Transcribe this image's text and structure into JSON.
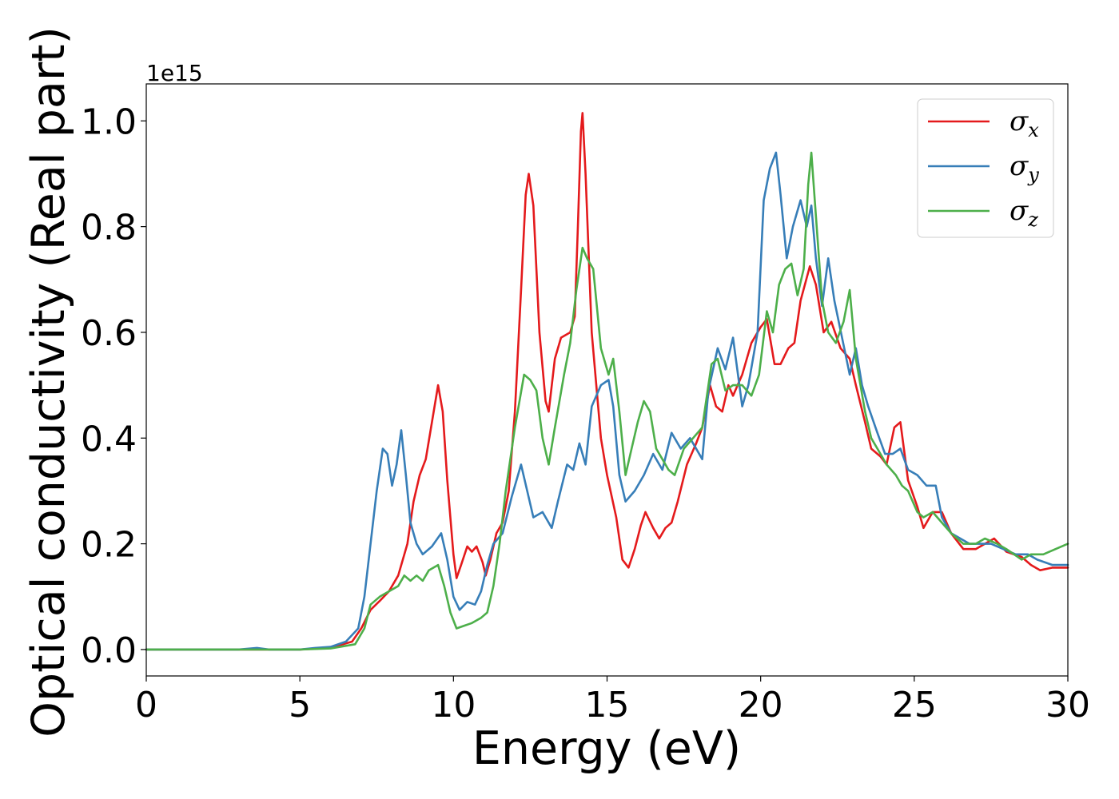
{
  "chart_data": {
    "type": "line",
    "xlabel": "Energy (eV)",
    "ylabel": "Optical conductivity (Real part)",
    "y_offset_label": "1e15",
    "xlim": [
      0,
      30
    ],
    "ylim": [
      -0.05,
      1.07
    ],
    "x_ticks": [
      0,
      5,
      10,
      15,
      20,
      25,
      30
    ],
    "x_tick_labels": [
      "0",
      "5",
      "10",
      "15",
      "20",
      "25",
      "30"
    ],
    "y_ticks": [
      0.0,
      0.2,
      0.4,
      0.6,
      0.8,
      1.0
    ],
    "y_tick_labels": [
      "0.0",
      "0.2",
      "0.4",
      "0.6",
      "0.8",
      "1.0"
    ],
    "grid": false,
    "legend_position": "top-right",
    "series": [
      {
        "name": "σx",
        "symbol": "σ",
        "subscript": "x",
        "color": "#e41a1c",
        "points": [
          [
            0,
            0
          ],
          [
            3,
            0
          ],
          [
            5,
            0
          ],
          [
            6,
            0.003
          ],
          [
            6.7,
            0.015
          ],
          [
            7,
            0.04
          ],
          [
            7.3,
            0.075
          ],
          [
            7.6,
            0.092
          ],
          [
            7.9,
            0.11
          ],
          [
            8.2,
            0.14
          ],
          [
            8.5,
            0.2
          ],
          [
            8.7,
            0.28
          ],
          [
            8.9,
            0.33
          ],
          [
            9.1,
            0.36
          ],
          [
            9.3,
            0.43
          ],
          [
            9.5,
            0.5
          ],
          [
            9.65,
            0.45
          ],
          [
            9.8,
            0.32
          ],
          [
            10,
            0.18
          ],
          [
            10.1,
            0.135
          ],
          [
            10.25,
            0.16
          ],
          [
            10.45,
            0.195
          ],
          [
            10.6,
            0.185
          ],
          [
            10.75,
            0.195
          ],
          [
            10.95,
            0.165
          ],
          [
            11.05,
            0.14
          ],
          [
            11.2,
            0.17
          ],
          [
            11.4,
            0.22
          ],
          [
            11.6,
            0.24
          ],
          [
            11.8,
            0.3
          ],
          [
            12,
            0.45
          ],
          [
            12.2,
            0.68
          ],
          [
            12.35,
            0.86
          ],
          [
            12.45,
            0.9
          ],
          [
            12.6,
            0.84
          ],
          [
            12.8,
            0.6
          ],
          [
            13,
            0.47
          ],
          [
            13.1,
            0.45
          ],
          [
            13.3,
            0.55
          ],
          [
            13.5,
            0.59
          ],
          [
            13.8,
            0.6
          ],
          [
            13.95,
            0.63
          ],
          [
            14.05,
            0.8
          ],
          [
            14.15,
            0.98
          ],
          [
            14.2,
            1.015
          ],
          [
            14.3,
            0.9
          ],
          [
            14.5,
            0.6
          ],
          [
            14.8,
            0.4
          ],
          [
            15,
            0.33
          ],
          [
            15.3,
            0.25
          ],
          [
            15.5,
            0.17
          ],
          [
            15.7,
            0.155
          ],
          [
            15.9,
            0.19
          ],
          [
            16.1,
            0.235
          ],
          [
            16.25,
            0.26
          ],
          [
            16.5,
            0.23
          ],
          [
            16.7,
            0.21
          ],
          [
            16.9,
            0.23
          ],
          [
            17.1,
            0.24
          ],
          [
            17.3,
            0.28
          ],
          [
            17.6,
            0.35
          ],
          [
            17.9,
            0.39
          ],
          [
            18.1,
            0.42
          ],
          [
            18.35,
            0.5
          ],
          [
            18.55,
            0.46
          ],
          [
            18.75,
            0.45
          ],
          [
            18.95,
            0.5
          ],
          [
            19.1,
            0.48
          ],
          [
            19.4,
            0.52
          ],
          [
            19.7,
            0.58
          ],
          [
            20,
            0.61
          ],
          [
            20.2,
            0.625
          ],
          [
            20.45,
            0.54
          ],
          [
            20.65,
            0.54
          ],
          [
            20.9,
            0.57
          ],
          [
            21.1,
            0.58
          ],
          [
            21.3,
            0.66
          ],
          [
            21.6,
            0.725
          ],
          [
            21.8,
            0.69
          ],
          [
            22.05,
            0.6
          ],
          [
            22.3,
            0.62
          ],
          [
            22.6,
            0.57
          ],
          [
            22.9,
            0.55
          ],
          [
            23.1,
            0.5
          ],
          [
            23.4,
            0.43
          ],
          [
            23.6,
            0.38
          ],
          [
            23.9,
            0.365
          ],
          [
            24.1,
            0.35
          ],
          [
            24.35,
            0.42
          ],
          [
            24.55,
            0.43
          ],
          [
            24.8,
            0.32
          ],
          [
            25.1,
            0.27
          ],
          [
            25.3,
            0.23
          ],
          [
            25.6,
            0.26
          ],
          [
            25.9,
            0.26
          ],
          [
            26.2,
            0.22
          ],
          [
            26.6,
            0.19
          ],
          [
            27,
            0.19
          ],
          [
            27.3,
            0.2
          ],
          [
            27.6,
            0.21
          ],
          [
            28,
            0.185
          ],
          [
            28.5,
            0.175
          ],
          [
            28.8,
            0.16
          ],
          [
            29.1,
            0.15
          ],
          [
            29.5,
            0.155
          ],
          [
            30,
            0.155
          ]
        ]
      },
      {
        "name": "σy",
        "symbol": "σ",
        "subscript": "y",
        "color": "#377eb8",
        "points": [
          [
            0,
            0
          ],
          [
            3,
            0
          ],
          [
            3.6,
            0.003
          ],
          [
            4,
            0
          ],
          [
            5,
            0
          ],
          [
            5.5,
            0.003
          ],
          [
            6,
            0.005
          ],
          [
            6.5,
            0.015
          ],
          [
            6.9,
            0.04
          ],
          [
            7.1,
            0.1
          ],
          [
            7.3,
            0.2
          ],
          [
            7.5,
            0.3
          ],
          [
            7.7,
            0.38
          ],
          [
            7.85,
            0.37
          ],
          [
            8,
            0.31
          ],
          [
            8.15,
            0.35
          ],
          [
            8.3,
            0.415
          ],
          [
            8.45,
            0.33
          ],
          [
            8.6,
            0.24
          ],
          [
            8.8,
            0.2
          ],
          [
            9,
            0.18
          ],
          [
            9.3,
            0.195
          ],
          [
            9.6,
            0.22
          ],
          [
            9.8,
            0.17
          ],
          [
            10,
            0.1
          ],
          [
            10.2,
            0.075
          ],
          [
            10.45,
            0.09
          ],
          [
            10.7,
            0.085
          ],
          [
            10.9,
            0.11
          ],
          [
            11.1,
            0.16
          ],
          [
            11.3,
            0.2
          ],
          [
            11.6,
            0.22
          ],
          [
            11.9,
            0.29
          ],
          [
            12.2,
            0.35
          ],
          [
            12.4,
            0.3
          ],
          [
            12.6,
            0.25
          ],
          [
            12.9,
            0.26
          ],
          [
            13.2,
            0.23
          ],
          [
            13.4,
            0.28
          ],
          [
            13.7,
            0.35
          ],
          [
            13.9,
            0.34
          ],
          [
            14.1,
            0.39
          ],
          [
            14.3,
            0.35
          ],
          [
            14.5,
            0.46
          ],
          [
            14.8,
            0.5
          ],
          [
            15.05,
            0.51
          ],
          [
            15.2,
            0.46
          ],
          [
            15.4,
            0.33
          ],
          [
            15.6,
            0.28
          ],
          [
            15.9,
            0.3
          ],
          [
            16.2,
            0.33
          ],
          [
            16.5,
            0.37
          ],
          [
            16.8,
            0.34
          ],
          [
            17.1,
            0.41
          ],
          [
            17.4,
            0.38
          ],
          [
            17.7,
            0.4
          ],
          [
            18.1,
            0.36
          ],
          [
            18.3,
            0.49
          ],
          [
            18.6,
            0.57
          ],
          [
            18.85,
            0.53
          ],
          [
            19.1,
            0.59
          ],
          [
            19.4,
            0.46
          ],
          [
            19.6,
            0.5
          ],
          [
            19.9,
            0.6
          ],
          [
            20.1,
            0.85
          ],
          [
            20.3,
            0.91
          ],
          [
            20.5,
            0.94
          ],
          [
            20.65,
            0.86
          ],
          [
            20.85,
            0.74
          ],
          [
            21.05,
            0.8
          ],
          [
            21.3,
            0.85
          ],
          [
            21.5,
            0.8
          ],
          [
            21.65,
            0.84
          ],
          [
            21.8,
            0.74
          ],
          [
            22,
            0.65
          ],
          [
            22.2,
            0.74
          ],
          [
            22.4,
            0.66
          ],
          [
            22.65,
            0.59
          ],
          [
            22.9,
            0.52
          ],
          [
            23.1,
            0.57
          ],
          [
            23.3,
            0.5
          ],
          [
            23.5,
            0.46
          ],
          [
            23.8,
            0.41
          ],
          [
            24.05,
            0.37
          ],
          [
            24.3,
            0.37
          ],
          [
            24.55,
            0.38
          ],
          [
            24.8,
            0.34
          ],
          [
            25.1,
            0.33
          ],
          [
            25.4,
            0.31
          ],
          [
            25.7,
            0.31
          ],
          [
            25.9,
            0.25
          ],
          [
            26.2,
            0.22
          ],
          [
            26.5,
            0.21
          ],
          [
            26.8,
            0.2
          ],
          [
            27.1,
            0.2
          ],
          [
            27.5,
            0.2
          ],
          [
            27.9,
            0.19
          ],
          [
            28.3,
            0.18
          ],
          [
            28.7,
            0.18
          ],
          [
            29,
            0.17
          ],
          [
            29.5,
            0.16
          ],
          [
            30,
            0.16
          ]
        ]
      },
      {
        "name": "σz",
        "symbol": "σ",
        "subscript": "z",
        "color": "#4daf4a",
        "points": [
          [
            0,
            0
          ],
          [
            3,
            0
          ],
          [
            5,
            0
          ],
          [
            6,
            0.002
          ],
          [
            6.8,
            0.01
          ],
          [
            7.1,
            0.04
          ],
          [
            7.3,
            0.085
          ],
          [
            7.6,
            0.1
          ],
          [
            7.9,
            0.11
          ],
          [
            8.2,
            0.12
          ],
          [
            8.4,
            0.14
          ],
          [
            8.6,
            0.13
          ],
          [
            8.8,
            0.14
          ],
          [
            9,
            0.13
          ],
          [
            9.2,
            0.15
          ],
          [
            9.5,
            0.16
          ],
          [
            9.7,
            0.12
          ],
          [
            9.9,
            0.07
          ],
          [
            10.1,
            0.04
          ],
          [
            10.35,
            0.045
          ],
          [
            10.6,
            0.05
          ],
          [
            10.9,
            0.06
          ],
          [
            11.1,
            0.07
          ],
          [
            11.3,
            0.12
          ],
          [
            11.5,
            0.2
          ],
          [
            11.7,
            0.3
          ],
          [
            12,
            0.42
          ],
          [
            12.3,
            0.52
          ],
          [
            12.5,
            0.51
          ],
          [
            12.7,
            0.49
          ],
          [
            12.9,
            0.4
          ],
          [
            13.1,
            0.35
          ],
          [
            13.3,
            0.42
          ],
          [
            13.6,
            0.52
          ],
          [
            13.8,
            0.58
          ],
          [
            14,
            0.68
          ],
          [
            14.2,
            0.76
          ],
          [
            14.35,
            0.74
          ],
          [
            14.55,
            0.72
          ],
          [
            14.8,
            0.57
          ],
          [
            15.05,
            0.52
          ],
          [
            15.2,
            0.55
          ],
          [
            15.4,
            0.45
          ],
          [
            15.6,
            0.33
          ],
          [
            15.8,
            0.38
          ],
          [
            16,
            0.43
          ],
          [
            16.2,
            0.47
          ],
          [
            16.4,
            0.45
          ],
          [
            16.6,
            0.38
          ],
          [
            16.8,
            0.36
          ],
          [
            17,
            0.34
          ],
          [
            17.2,
            0.33
          ],
          [
            17.5,
            0.38
          ],
          [
            17.8,
            0.4
          ],
          [
            18.1,
            0.42
          ],
          [
            18.4,
            0.54
          ],
          [
            18.6,
            0.55
          ],
          [
            18.85,
            0.49
          ],
          [
            19.1,
            0.5
          ],
          [
            19.4,
            0.5
          ],
          [
            19.7,
            0.48
          ],
          [
            19.95,
            0.52
          ],
          [
            20.2,
            0.64
          ],
          [
            20.4,
            0.6
          ],
          [
            20.6,
            0.69
          ],
          [
            20.8,
            0.72
          ],
          [
            21,
            0.73
          ],
          [
            21.2,
            0.67
          ],
          [
            21.4,
            0.72
          ],
          [
            21.55,
            0.88
          ],
          [
            21.65,
            0.94
          ],
          [
            21.8,
            0.82
          ],
          [
            22,
            0.66
          ],
          [
            22.2,
            0.6
          ],
          [
            22.45,
            0.58
          ],
          [
            22.7,
            0.62
          ],
          [
            22.9,
            0.68
          ],
          [
            23.1,
            0.55
          ],
          [
            23.4,
            0.45
          ],
          [
            23.6,
            0.4
          ],
          [
            23.9,
            0.37
          ],
          [
            24.1,
            0.35
          ],
          [
            24.4,
            0.33
          ],
          [
            24.6,
            0.31
          ],
          [
            24.8,
            0.3
          ],
          [
            25.1,
            0.26
          ],
          [
            25.3,
            0.25
          ],
          [
            25.6,
            0.26
          ],
          [
            25.9,
            0.24
          ],
          [
            26.2,
            0.22
          ],
          [
            26.6,
            0.2
          ],
          [
            27,
            0.2
          ],
          [
            27.3,
            0.21
          ],
          [
            27.7,
            0.2
          ],
          [
            28,
            0.19
          ],
          [
            28.5,
            0.17
          ],
          [
            28.8,
            0.18
          ],
          [
            29.2,
            0.18
          ],
          [
            29.6,
            0.19
          ],
          [
            30,
            0.2
          ]
        ]
      }
    ]
  }
}
